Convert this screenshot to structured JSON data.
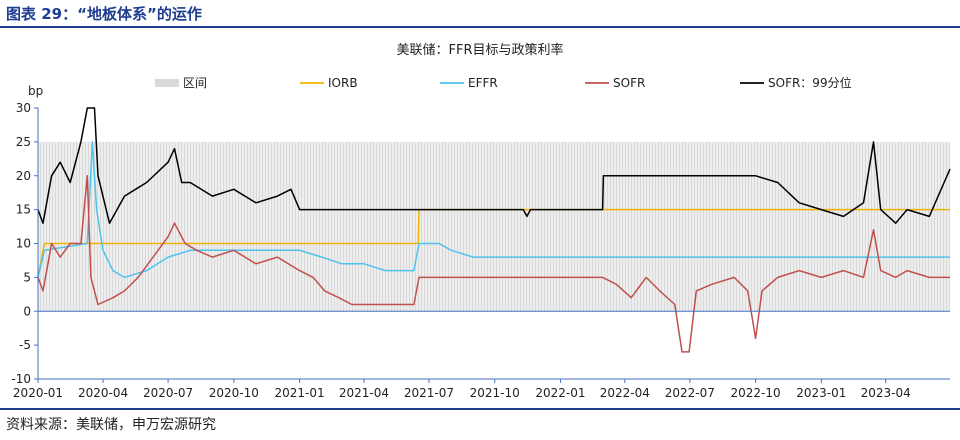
{
  "figure_title": "图表 29：“地板体系”的运作",
  "source_note": "资料来源：美联储，申万宏源研究",
  "colors": {
    "band": "#d9d9d9",
    "iorb": "#f0b400",
    "effr": "#4dc3ee",
    "sofr": "#c0504d",
    "sofr99": "#000000",
    "axis": "#4472c4",
    "title_rule": "#1f3d8f"
  },
  "chart_data": {
    "type": "line",
    "title": "美联储：FFR目标与政策利率",
    "ylabel": "bp",
    "ylim": [
      -10,
      30
    ],
    "yticks": [
      -10,
      -5,
      0,
      5,
      10,
      15,
      20,
      25,
      30
    ],
    "xlim": [
      "2020-01-01",
      "2023-06-30"
    ],
    "xticks": [
      "2020-01",
      "2020-04",
      "2020-07",
      "2020-10",
      "2021-01",
      "2021-04",
      "2021-07",
      "2021-10",
      "2022-01",
      "2022-04",
      "2022-07",
      "2022-10",
      "2023-01",
      "2023-04"
    ],
    "legend_position": "top",
    "band": {
      "name": "区间",
      "lower": 0,
      "upper": 25
    },
    "series": [
      {
        "name": "IORB",
        "color_key": "iorb",
        "points": [
          [
            "2020-01-01",
            5
          ],
          [
            "2020-01-10",
            10
          ],
          [
            "2021-06-16",
            10
          ],
          [
            "2021-06-17",
            15
          ],
          [
            "2023-06-30",
            15
          ]
        ]
      },
      {
        "name": "EFFR",
        "color_key": "effr",
        "points": [
          [
            "2020-01-01",
            5
          ],
          [
            "2020-01-10",
            9
          ],
          [
            "2020-03-10",
            10
          ],
          [
            "2020-03-17",
            25
          ],
          [
            "2020-03-23",
            15
          ],
          [
            "2020-04-01",
            9
          ],
          [
            "2020-04-15",
            6
          ],
          [
            "2020-05-01",
            5
          ],
          [
            "2020-06-01",
            6
          ],
          [
            "2020-07-01",
            8
          ],
          [
            "2020-08-01",
            9
          ],
          [
            "2020-09-01",
            9
          ],
          [
            "2020-10-01",
            9
          ],
          [
            "2020-11-01",
            9
          ],
          [
            "2021-01-01",
            9
          ],
          [
            "2021-02-01",
            8
          ],
          [
            "2021-03-01",
            7
          ],
          [
            "2021-04-01",
            7
          ],
          [
            "2021-05-01",
            6
          ],
          [
            "2021-06-10",
            6
          ],
          [
            "2021-06-17",
            10
          ],
          [
            "2021-07-15",
            10
          ],
          [
            "2021-08-01",
            9
          ],
          [
            "2021-09-01",
            8
          ],
          [
            "2022-01-01",
            8
          ],
          [
            "2022-06-01",
            8
          ],
          [
            "2022-09-01",
            8
          ],
          [
            "2023-01-01",
            8
          ],
          [
            "2023-06-30",
            8
          ]
        ]
      },
      {
        "name": "SOFR",
        "color_key": "sofr",
        "points": [
          [
            "2020-01-01",
            5
          ],
          [
            "2020-01-08",
            3
          ],
          [
            "2020-01-20",
            10
          ],
          [
            "2020-02-01",
            8
          ],
          [
            "2020-02-15",
            10
          ],
          [
            "2020-03-01",
            10
          ],
          [
            "2020-03-10",
            20
          ],
          [
            "2020-03-15",
            5
          ],
          [
            "2020-03-25",
            1
          ],
          [
            "2020-04-15",
            2
          ],
          [
            "2020-05-01",
            3
          ],
          [
            "2020-05-20",
            5
          ],
          [
            "2020-06-10",
            8
          ],
          [
            "2020-07-01",
            11
          ],
          [
            "2020-07-10",
            13
          ],
          [
            "2020-07-25",
            10
          ],
          [
            "2020-08-10",
            9
          ],
          [
            "2020-09-01",
            8
          ],
          [
            "2020-10-01",
            9
          ],
          [
            "2020-11-01",
            7
          ],
          [
            "2020-12-01",
            8
          ],
          [
            "2021-01-01",
            6
          ],
          [
            "2021-01-20",
            5
          ],
          [
            "2021-02-05",
            3
          ],
          [
            "2021-02-25",
            2
          ],
          [
            "2021-03-15",
            1
          ],
          [
            "2021-04-01",
            1
          ],
          [
            "2021-05-01",
            1
          ],
          [
            "2021-06-10",
            1
          ],
          [
            "2021-06-17",
            5
          ],
          [
            "2021-08-01",
            5
          ],
          [
            "2021-10-01",
            5
          ],
          [
            "2021-12-01",
            5
          ],
          [
            "2022-02-01",
            5
          ],
          [
            "2022-03-01",
            5
          ],
          [
            "2022-03-20",
            4
          ],
          [
            "2022-04-10",
            2
          ],
          [
            "2022-05-01",
            5
          ],
          [
            "2022-05-20",
            3
          ],
          [
            "2022-06-10",
            1
          ],
          [
            "2022-06-20",
            -6
          ],
          [
            "2022-06-30",
            -6
          ],
          [
            "2022-07-10",
            3
          ],
          [
            "2022-08-01",
            4
          ],
          [
            "2022-09-01",
            5
          ],
          [
            "2022-09-20",
            3
          ],
          [
            "2022-10-01",
            -4
          ],
          [
            "2022-10-10",
            3
          ],
          [
            "2022-11-01",
            5
          ],
          [
            "2022-12-01",
            6
          ],
          [
            "2023-01-01",
            5
          ],
          [
            "2023-02-01",
            6
          ],
          [
            "2023-03-01",
            5
          ],
          [
            "2023-03-15",
            12
          ],
          [
            "2023-03-25",
            6
          ],
          [
            "2023-04-15",
            5
          ],
          [
            "2023-05-01",
            6
          ],
          [
            "2023-06-01",
            5
          ],
          [
            "2023-06-30",
            5
          ]
        ]
      },
      {
        "name": "SOFR：99分位",
        "color_key": "sofr99",
        "points": [
          [
            "2020-01-01",
            15
          ],
          [
            "2020-01-08",
            13
          ],
          [
            "2020-01-20",
            20
          ],
          [
            "2020-02-01",
            22
          ],
          [
            "2020-02-15",
            19
          ],
          [
            "2020-03-01",
            25
          ],
          [
            "2020-03-10",
            30
          ],
          [
            "2020-03-20",
            30
          ],
          [
            "2020-03-25",
            20
          ],
          [
            "2020-04-10",
            13
          ],
          [
            "2020-05-01",
            17
          ],
          [
            "2020-06-01",
            19
          ],
          [
            "2020-07-01",
            22
          ],
          [
            "2020-07-10",
            24
          ],
          [
            "2020-07-20",
            19
          ],
          [
            "2020-08-01",
            19
          ],
          [
            "2020-09-01",
            17
          ],
          [
            "2020-10-01",
            18
          ],
          [
            "2020-11-01",
            16
          ],
          [
            "2020-12-01",
            17
          ],
          [
            "2020-12-20",
            18
          ],
          [
            "2021-01-01",
            15
          ],
          [
            "2021-05-01",
            15
          ],
          [
            "2021-09-01",
            15
          ],
          [
            "2021-11-10",
            15
          ],
          [
            "2021-11-15",
            14
          ],
          [
            "2021-11-20",
            15
          ],
          [
            "2022-02-15",
            15
          ],
          [
            "2022-03-01",
            15
          ],
          [
            "2022-03-02",
            20
          ],
          [
            "2022-04-01",
            20
          ],
          [
            "2022-05-01",
            20
          ],
          [
            "2022-06-01",
            20
          ],
          [
            "2022-07-01",
            20
          ],
          [
            "2022-08-01",
            20
          ],
          [
            "2022-09-01",
            20
          ],
          [
            "2022-10-01",
            20
          ],
          [
            "2022-11-01",
            19
          ],
          [
            "2022-12-01",
            16
          ],
          [
            "2023-01-01",
            15
          ],
          [
            "2023-02-01",
            14
          ],
          [
            "2023-03-01",
            16
          ],
          [
            "2023-03-15",
            25
          ],
          [
            "2023-03-25",
            15
          ],
          [
            "2023-04-15",
            13
          ],
          [
            "2023-05-01",
            15
          ],
          [
            "2023-06-01",
            14
          ],
          [
            "2023-06-30",
            21
          ]
        ]
      }
    ]
  }
}
